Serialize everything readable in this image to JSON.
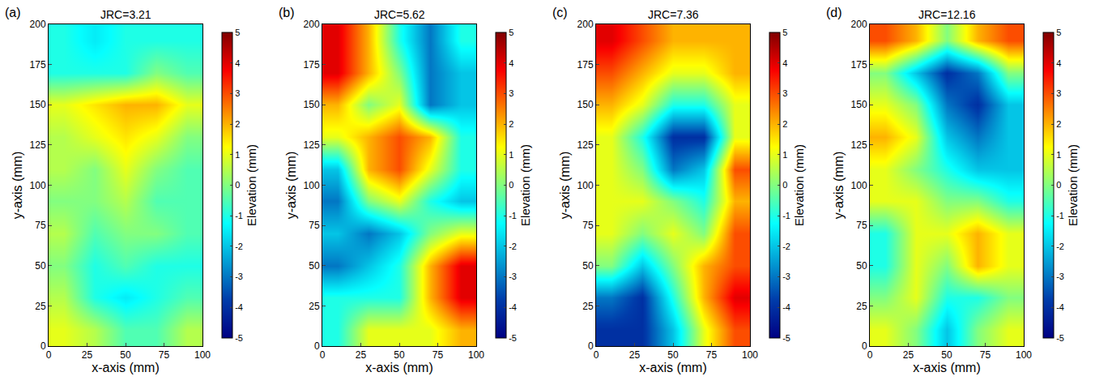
{
  "chart_data": [
    {
      "type": "heatmap",
      "label": "(a)",
      "title": "JRC=3.21",
      "x_label": "x-axis (mm)",
      "y_label": "y-axis (mm)",
      "x": [
        10,
        30,
        50,
        70,
        90
      ],
      "y": [
        10,
        30,
        50,
        70,
        90,
        110,
        130,
        150,
        170,
        190
      ],
      "z": [
        [
          1,
          0.5,
          -0.5,
          -0.5,
          0.5
        ],
        [
          0.5,
          -1,
          -1.5,
          -1,
          -0.5
        ],
        [
          0,
          -1,
          -0.5,
          -1,
          -1
        ],
        [
          0.5,
          -0.5,
          0,
          0,
          -0.5
        ],
        [
          0,
          0,
          0.5,
          -0.5,
          -0.5
        ],
        [
          0.5,
          0,
          1,
          0,
          -0.5
        ],
        [
          0.5,
          1,
          1.5,
          1,
          0
        ],
        [
          1,
          1.5,
          2,
          2,
          1
        ],
        [
          -1,
          -1,
          -1,
          0,
          -0.5
        ],
        [
          -1,
          -1.5,
          -1,
          -1,
          -1
        ]
      ],
      "xlim": [
        0,
        100
      ],
      "ylim": [
        0,
        200
      ],
      "xticks": [
        0,
        25,
        50,
        75,
        100
      ],
      "yticks": [
        0,
        25,
        50,
        75,
        100,
        125,
        150,
        175,
        200
      ],
      "color": "Jet",
      "colorbar": {
        "title": "Elevation (mm)",
        "range": [
          -5,
          5
        ],
        "ticks": [
          -5,
          -4,
          -3,
          -2,
          -1,
          0,
          1,
          2,
          3,
          4,
          5
        ]
      }
    },
    {
      "type": "heatmap",
      "label": "(b)",
      "title": "JRC=5.62",
      "x_label": "x-axis (mm)",
      "y_label": "y-axis (mm)",
      "x": [
        10,
        30,
        50,
        70,
        90
      ],
      "y": [
        10,
        30,
        50,
        70,
        90,
        110,
        130,
        150,
        170,
        190
      ],
      "z": [
        [
          -1,
          1,
          1,
          1,
          2
        ],
        [
          -1,
          -1,
          -1,
          2,
          4
        ],
        [
          -3,
          -2,
          -1,
          2,
          4
        ],
        [
          -2,
          -3,
          -2,
          0,
          1
        ],
        [
          -3,
          0,
          1,
          -1,
          -2
        ],
        [
          -2,
          2,
          3,
          1,
          -1
        ],
        [
          1,
          2,
          3,
          2,
          -1
        ],
        [
          2,
          0,
          1,
          -3,
          -2
        ],
        [
          4,
          2,
          0,
          -3,
          -2
        ],
        [
          4,
          2,
          -1,
          -3,
          -1
        ]
      ],
      "xlim": [
        0,
        100
      ],
      "ylim": [
        0,
        200
      ],
      "xticks": [
        0,
        25,
        50,
        75,
        100
      ],
      "yticks": [
        0,
        25,
        50,
        75,
        100,
        125,
        150,
        175,
        200
      ],
      "color": "Jet",
      "colorbar": {
        "title": "Elevation (mm)",
        "range": [
          -5,
          5
        ],
        "ticks": [
          -5,
          -4,
          -3,
          -2,
          -1,
          0,
          1,
          2,
          3,
          4,
          5
        ]
      }
    },
    {
      "type": "heatmap",
      "label": "(c)",
      "title": "JRC=7.36",
      "x_label": "x-axis (mm)",
      "y_label": "y-axis (mm)",
      "x": [
        10,
        30,
        50,
        70,
        90
      ],
      "y": [
        10,
        30,
        50,
        70,
        90,
        110,
        130,
        150,
        170,
        190
      ],
      "z": [
        [
          -4,
          -4,
          -2,
          1,
          3
        ],
        [
          -3,
          -4,
          -1,
          2,
          4
        ],
        [
          0,
          -2,
          0,
          2,
          3
        ],
        [
          1,
          0,
          1,
          0,
          3
        ],
        [
          1,
          1,
          0,
          -1,
          2
        ],
        [
          1,
          0,
          -3,
          -2,
          3
        ],
        [
          1,
          -1,
          -4,
          -4,
          1
        ],
        [
          2,
          1,
          -1,
          -1,
          1
        ],
        [
          3,
          2,
          1,
          1,
          2
        ],
        [
          4,
          3,
          2,
          2,
          2
        ]
      ],
      "xlim": [
        0,
        100
      ],
      "ylim": [
        0,
        200
      ],
      "xticks": [
        0,
        25,
        50,
        75,
        100
      ],
      "yticks": [
        0,
        25,
        50,
        75,
        100,
        125,
        150,
        175,
        200
      ],
      "color": "Jet",
      "colorbar": {
        "title": "Elevation (mm)",
        "range": [
          -5,
          5
        ],
        "ticks": [
          -5,
          -4,
          -3,
          -2,
          -1,
          0,
          1,
          2,
          3,
          4,
          5
        ]
      }
    },
    {
      "type": "heatmap",
      "label": "(d)",
      "title": "JRC=12.16",
      "x_label": "x-axis (mm)",
      "y_label": "y-axis (mm)",
      "x": [
        10,
        30,
        50,
        70,
        90
      ],
      "y": [
        10,
        30,
        50,
        70,
        90,
        110,
        130,
        150,
        170,
        190
      ],
      "z": [
        [
          1,
          0,
          -2,
          0,
          1
        ],
        [
          0,
          1,
          -1,
          -1,
          0
        ],
        [
          -1,
          1,
          0,
          2,
          1
        ],
        [
          -1,
          1,
          1,
          2,
          1
        ],
        [
          1,
          1,
          0,
          0,
          -1
        ],
        [
          1,
          0,
          -1,
          -2,
          -2
        ],
        [
          2,
          1,
          -2,
          -3,
          -2
        ],
        [
          1,
          0,
          -3,
          -4,
          -2
        ],
        [
          0,
          -2,
          -4,
          -3,
          0
        ],
        [
          3,
          2,
          0,
          2,
          3
        ]
      ],
      "xlim": [
        0,
        100
      ],
      "ylim": [
        0,
        200
      ],
      "xticks": [
        0,
        25,
        50,
        75,
        100
      ],
      "yticks": [
        0,
        25,
        50,
        75,
        100,
        125,
        150,
        175,
        200
      ],
      "color": "Jet",
      "colorbar": {
        "title": "Elevation (mm)",
        "range": [
          -5,
          5
        ],
        "ticks": [
          -5,
          -4,
          -3,
          -2,
          -1,
          0,
          1,
          2,
          3,
          4,
          5
        ]
      }
    }
  ]
}
